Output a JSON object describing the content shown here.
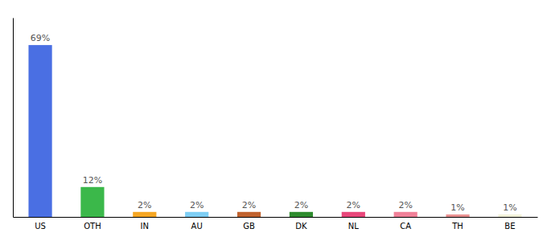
{
  "chart_data": {
    "type": "bar",
    "categories": [
      "US",
      "OTH",
      "IN",
      "AU",
      "GB",
      "DK",
      "NL",
      "CA",
      "TH",
      "BE"
    ],
    "values": [
      69,
      12,
      2,
      2,
      2,
      2,
      2,
      2,
      1,
      1
    ],
    "value_labels": [
      "69%",
      "12%",
      "2%",
      "2%",
      "2%",
      "2%",
      "2%",
      "2%",
      "1%",
      "1%"
    ],
    "colors": [
      "#4a6fe3",
      "#3bb84a",
      "#f5a623",
      "#7ecef4",
      "#c0622e",
      "#2e8b2e",
      "#e8477a",
      "#f08098",
      "#e89090",
      "#f0f0d8"
    ],
    "ylim": [
      0,
      80
    ],
    "data_labels": true,
    "tick_labels": "x"
  }
}
